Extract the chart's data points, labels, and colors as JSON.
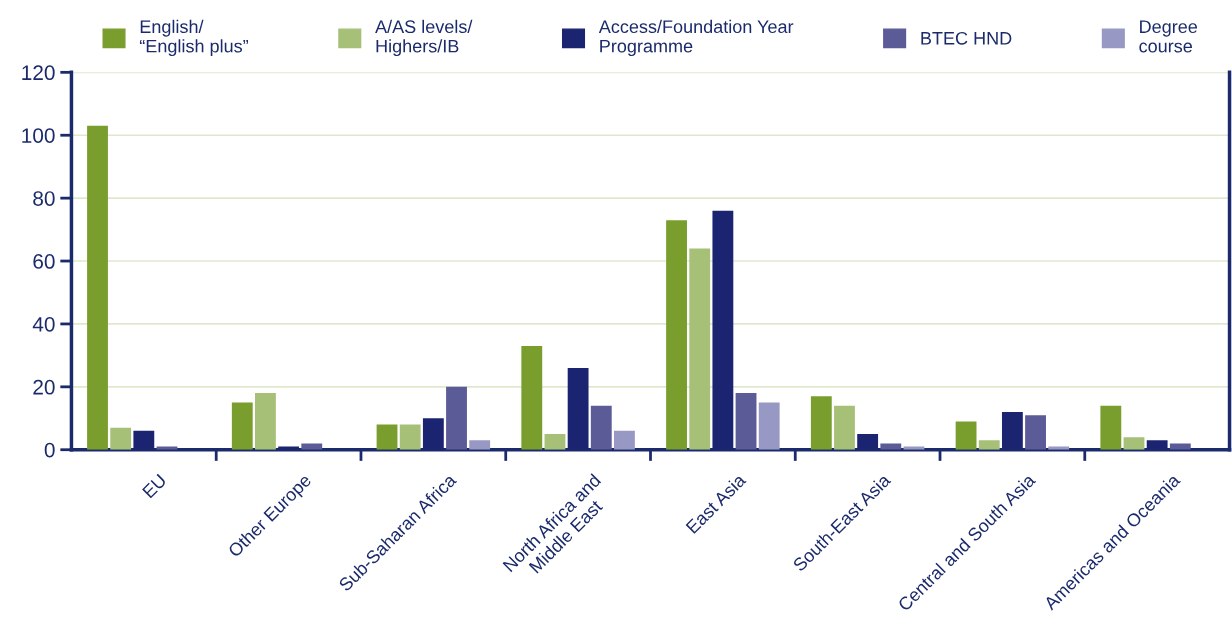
{
  "chart_data": {
    "type": "bar",
    "categories": [
      "EU",
      "Other Europe",
      "Sub-Saharan Africa",
      "North Africa and\nMiddle East",
      "East Asia",
      "South-East Asia",
      "Central and South Asia",
      "Americas and Oceania"
    ],
    "series": [
      {
        "name": "English/\n“English plus”",
        "color": "#7a9e2e",
        "values": [
          103,
          15,
          8,
          33,
          73,
          17,
          9,
          14
        ]
      },
      {
        "name": "A/AS levels/\nHighers/IB",
        "color": "#a7c078",
        "values": [
          7,
          18,
          8,
          5,
          64,
          14,
          3,
          4
        ]
      },
      {
        "name": "Access/Foundation Year\nProgramme",
        "color": "#1b2471",
        "values": [
          6,
          1,
          10,
          26,
          76,
          5,
          12,
          3
        ]
      },
      {
        "name": "BTEC HND",
        "color": "#5b5b98",
        "values": [
          1,
          2,
          20,
          14,
          18,
          2,
          11,
          2
        ]
      },
      {
        "name": "Degree\ncourse",
        "color": "#9898c4",
        "values": [
          0,
          0,
          3,
          6,
          15,
          1,
          1,
          0
        ]
      }
    ],
    "ylim": [
      0,
      120
    ],
    "yticks": [
      0,
      20,
      40,
      60,
      80,
      100,
      120
    ],
    "grid": "y",
    "legend": "top"
  }
}
